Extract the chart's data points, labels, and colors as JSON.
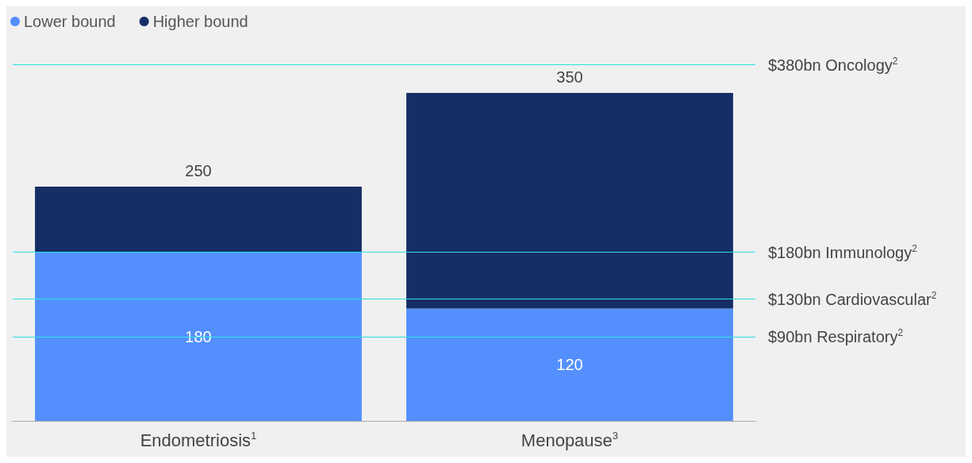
{
  "chart_data": {
    "type": "bar",
    "stacked": true,
    "categories": [
      "Endometriosis$^{1}$",
      "Menopause$^{3}$"
    ],
    "series": [
      {
        "name": "Lower bound",
        "color": "#5390fe",
        "values": [
          180,
          120
        ],
        "value_labels": [
          "180",
          "120"
        ]
      },
      {
        "name": "Higher bound",
        "color": "#162e66",
        "values": [
          70,
          230
        ]
      }
    ],
    "totals": [
      "250",
      "350"
    ],
    "ref_lines": [
      {
        "axis": "y",
        "value": 380,
        "label": "$380bn Oncology$^{2}$",
        "color": "#2ee0dc"
      },
      {
        "axis": "y",
        "value": 180,
        "label": "$180bn Immunology$^{2}$",
        "color": "#2ee0dc"
      },
      {
        "axis": "y",
        "value": 130,
        "label": "$130bn Cardiovascular$^{2}$",
        "color": "#2ee0dc"
      },
      {
        "axis": "y",
        "value": 90,
        "label": "$90bn Respiratory$^{2}$",
        "color": "#2ee0dc"
      }
    ],
    "legend": "top left"
  }
}
